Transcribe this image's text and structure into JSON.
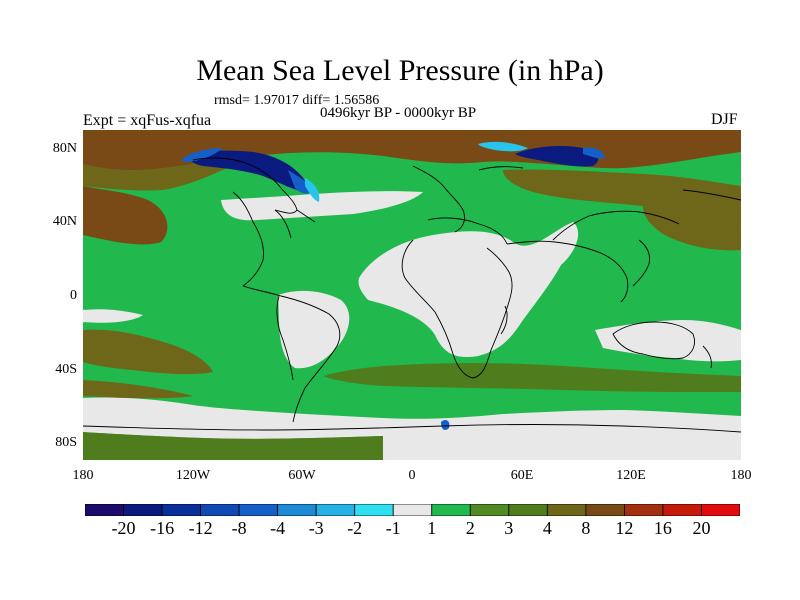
{
  "title": "Mean Sea Level Pressure (in hPa)",
  "stats": "rmsd= 1.97017 diff= 1.56586",
  "period": "0496kyr BP - 0000kyr BP",
  "experiment": "Expt = xqFus-xqfua",
  "season": "DJF",
  "map": {
    "y_ticks": [
      "80N",
      "40N",
      "0",
      "40S",
      "80S"
    ],
    "x_ticks": [
      "180",
      "120W",
      "60W",
      "0",
      "60E",
      "120E",
      "180"
    ],
    "colors": {
      "ocean_base": "#21b94e",
      "neutral": "#e8e8e8",
      "olive": "#4f7d1d",
      "dark_olive": "#6e6618",
      "brown": "#7a4a16",
      "navy": "#0a1a7e",
      "blue": "#1560c8",
      "cyan": "#27c4ec"
    }
  },
  "colorbar": {
    "levels": [
      "-20",
      "-16",
      "-12",
      "-8",
      "-4",
      "-3",
      "-2",
      "-1",
      "1",
      "2",
      "3",
      "4",
      "8",
      "12",
      "16",
      "20"
    ],
    "colors": [
      "#1d0b6b",
      "#0a1a7e",
      "#0a2f9b",
      "#1149b4",
      "#1560c8",
      "#1f8ad6",
      "#27b0e6",
      "#2ee0f0",
      "#e8e8e8",
      "#21b94e",
      "#4f8a22",
      "#4f7d1d",
      "#6e6618",
      "#7a4a16",
      "#a3310f",
      "#c61a0a",
      "#e30c0c"
    ]
  }
}
